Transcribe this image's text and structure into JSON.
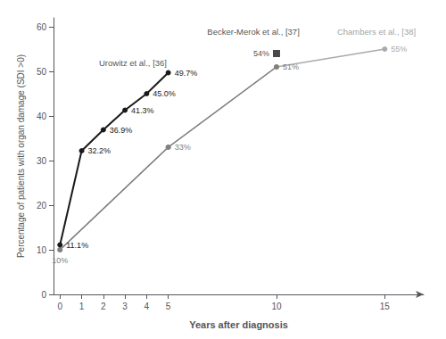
{
  "chart_data": {
    "type": "line",
    "xlabel": "Years after diagnosis",
    "ylabel": "Percentage of patients with organ damage (SDI >0)",
    "xlim": [
      -0.3,
      16.8
    ],
    "ylim": [
      0,
      62
    ],
    "xticks": [
      0,
      1,
      2,
      3,
      4,
      5,
      10,
      15
    ],
    "yticks": [
      0,
      10,
      20,
      30,
      40,
      50,
      60
    ],
    "grid": false,
    "data_labels": true,
    "series": [
      {
        "type": "line",
        "x": [
          0,
          5,
          10,
          15
        ],
        "values": [
          10,
          33,
          51,
          55
        ],
        "value_labels": [
          null,
          null,
          null,
          "55%"
        ],
        "color": "#aaaaaa",
        "marker": "o"
      },
      {
        "type": "line",
        "x": [
          0,
          5,
          10
        ],
        "values": [
          10,
          33,
          51
        ],
        "value_labels": [
          "10%",
          "33%",
          "51%"
        ],
        "color": "#808080",
        "marker": "o"
      },
      {
        "type": "scatter",
        "x": [
          10
        ],
        "values": [
          54
        ],
        "value_labels": [
          "54%"
        ],
        "color": "#1a1a1a",
        "marker": "s"
      },
      {
        "type": "line",
        "x": [
          0,
          1,
          2,
          3,
          4,
          5
        ],
        "values": [
          11.1,
          32.2,
          36.9,
          41.3,
          45.0,
          49.7
        ],
        "value_labels": [
          "11.1%",
          "32.2%",
          "36.9%",
          "41.3%",
          "45.0%",
          "49.7%"
        ],
        "color": "#1a1a1a",
        "marker": "o"
      }
    ],
    "annotations": [
      {
        "text": "Chambers et al., [38]",
        "x": 12.8,
        "y": 57.5,
        "color": "#888888"
      },
      {
        "text": "Becker-Merok et al., [37]",
        "x": 6.8,
        "y": 57.5,
        "color": "#1a1a1a"
      },
      {
        "text": "Urowitz et al., [36]",
        "x": 1.8,
        "y": 50.5,
        "color": "#1a1a1a"
      }
    ]
  }
}
